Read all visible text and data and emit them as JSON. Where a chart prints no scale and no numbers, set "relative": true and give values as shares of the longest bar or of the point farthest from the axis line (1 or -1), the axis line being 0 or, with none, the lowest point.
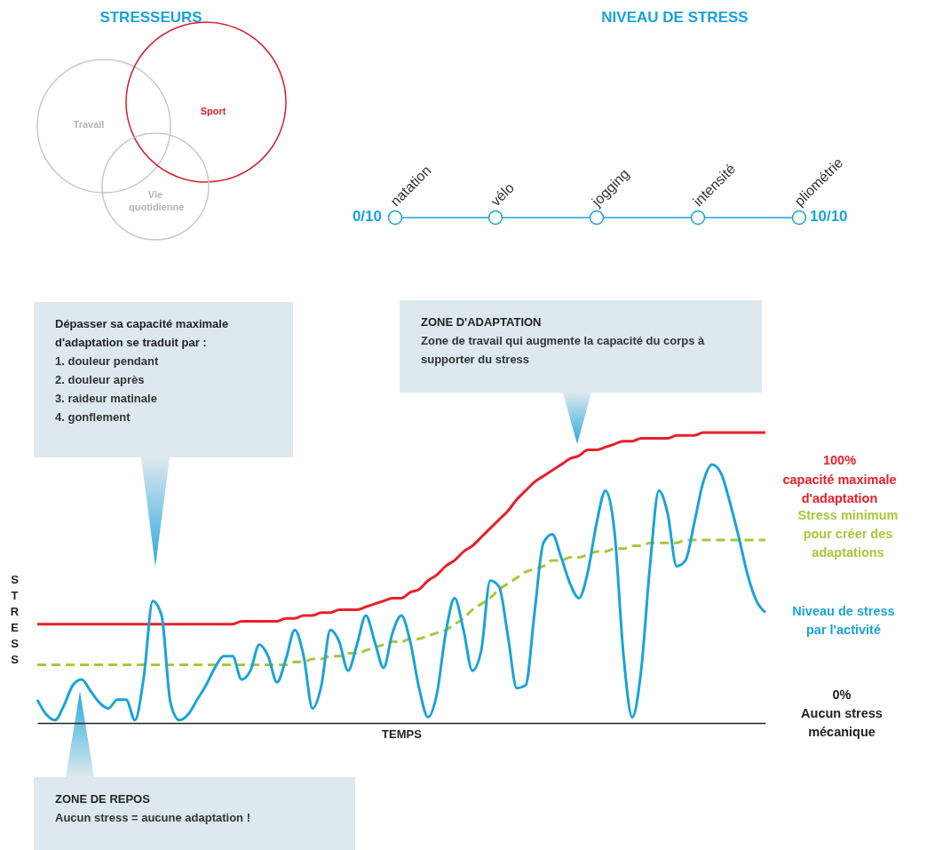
{
  "chart_data": [
    {
      "type": "other",
      "title": "STRESSEURS",
      "annotations": [
        "Travail",
        "Sport",
        "Vie quotidienne"
      ]
    },
    {
      "type": "other",
      "title": "NIVEAU DE STRESS",
      "annotations": [
        "0/10",
        "natation",
        "vélo",
        "jogging",
        "intensité",
        "pliométrie",
        "10/10"
      ]
    },
    {
      "type": "line",
      "relative": true,
      "xlabel": "TEMPS",
      "ylabel": "STRESS",
      "tick_labels": false,
      "categories": [
        null,
        null,
        null,
        null,
        null,
        null,
        null,
        null,
        null,
        null,
        null,
        null,
        null,
        null,
        null,
        null,
        null,
        null,
        null,
        null,
        null,
        null,
        null,
        null,
        null,
        null,
        null,
        null,
        null,
        null,
        null,
        null,
        null,
        null,
        null,
        null,
        null,
        null,
        null,
        null,
        null,
        null,
        null,
        null,
        null,
        null,
        null,
        null,
        null,
        null,
        null,
        null,
        null,
        null,
        null,
        null,
        null,
        null,
        null,
        null,
        null,
        null,
        null,
        null,
        null,
        null,
        null,
        null,
        null,
        null,
        null,
        null,
        null,
        null,
        null,
        null,
        null,
        null,
        null,
        null,
        null,
        null,
        null
      ],
      "series": [
        {
          "name": "capacité maximale d'adaptation",
          "color": "#e8202a",
          "line_style": "solid",
          "values": [
            0.34,
            0.34,
            0.34,
            0.34,
            0.34,
            0.34,
            0.34,
            0.34,
            0.34,
            0.34,
            0.34,
            0.34,
            0.34,
            0.34,
            0.34,
            0.34,
            0.34,
            0.34,
            0.34,
            0.34,
            0.34,
            0.34,
            0.34,
            0.35,
            0.35,
            0.35,
            0.35,
            0.35,
            0.36,
            0.36,
            0.37,
            0.37,
            0.38,
            0.38,
            0.39,
            0.39,
            0.39,
            0.4,
            0.41,
            0.42,
            0.43,
            0.43,
            0.45,
            0.46,
            0.49,
            0.51,
            0.54,
            0.56,
            0.59,
            0.61,
            0.64,
            0.67,
            0.7,
            0.73,
            0.77,
            0.8,
            0.83,
            0.85,
            0.87,
            0.89,
            0.91,
            0.92,
            0.94,
            0.94,
            0.95,
            0.96,
            0.97,
            0.97,
            0.98,
            0.98,
            0.98,
            0.98,
            0.99,
            0.99,
            0.99,
            1.0,
            1.0,
            1.0,
            1.0,
            1.0,
            1.0,
            1.0,
            1.0
          ]
        },
        {
          "name": "Stress minimum pour créer des adaptations",
          "color": "#a6c83a",
          "line_style": "dashed",
          "values": [
            0.2,
            0.2,
            0.2,
            0.2,
            0.2,
            0.2,
            0.2,
            0.2,
            0.2,
            0.2,
            0.2,
            0.2,
            0.2,
            0.2,
            0.2,
            0.2,
            0.2,
            0.2,
            0.2,
            0.2,
            0.2,
            0.2,
            0.2,
            0.2,
            0.2,
            0.2,
            0.2,
            0.2,
            0.2,
            0.21,
            0.21,
            0.22,
            0.22,
            0.23,
            0.23,
            0.24,
            0.24,
            0.25,
            0.26,
            0.27,
            0.28,
            0.28,
            0.29,
            0.29,
            0.3,
            0.31,
            0.32,
            0.34,
            0.36,
            0.39,
            0.41,
            0.43,
            0.46,
            0.48,
            0.5,
            0.52,
            0.53,
            0.54,
            0.56,
            0.56,
            0.57,
            0.57,
            0.58,
            0.59,
            0.59,
            0.6,
            0.6,
            0.61,
            0.61,
            0.62,
            0.62,
            0.62,
            0.62,
            0.63,
            0.63,
            0.63,
            0.63,
            0.63,
            0.63,
            0.63,
            0.63,
            0.63,
            0.63
          ]
        },
        {
          "name": "Niveau de stress par l'activité",
          "color": "#1aa3d8",
          "line_style": "solid",
          "values": [
            0.08,
            0.03,
            0.01,
            0.06,
            0.13,
            0.15,
            0.11,
            0.07,
            0.05,
            0.08,
            0.08,
            0.01,
            0.16,
            0.42,
            0.37,
            0.07,
            0.01,
            0.03,
            0.08,
            0.13,
            0.19,
            0.23,
            0.23,
            0.15,
            0.18,
            0.27,
            0.23,
            0.14,
            0.22,
            0.32,
            0.23,
            0.05,
            0.13,
            0.32,
            0.28,
            0.18,
            0.27,
            0.37,
            0.28,
            0.19,
            0.31,
            0.37,
            0.28,
            0.12,
            0.02,
            0.1,
            0.31,
            0.43,
            0.32,
            0.18,
            0.25,
            0.49,
            0.47,
            0.3,
            0.12,
            0.13,
            0.38,
            0.62,
            0.65,
            0.57,
            0.48,
            0.43,
            0.52,
            0.69,
            0.8,
            0.66,
            0.24,
            0.02,
            0.18,
            0.54,
            0.8,
            0.72,
            0.54,
            0.56,
            0.69,
            0.83,
            0.89,
            0.86,
            0.76,
            0.64,
            0.51,
            0.42,
            0.38
          ]
        }
      ],
      "annotations": [
        "Dépasser sa capacité maximale d'adaptation se traduit par :",
        "1. douleur pendant",
        "2. douleur après",
        "3. raideur matinale",
        "4. gonflement",
        "ZONE D'ADAPTATION",
        "Zone de travail qui augmente la capacité du corps à supporter du stress",
        "ZONE DE REPOS",
        "Aucun stress = aucune adaptation !",
        "100%",
        "0%",
        "Aucun stress mécanique"
      ]
    }
  ]
}
